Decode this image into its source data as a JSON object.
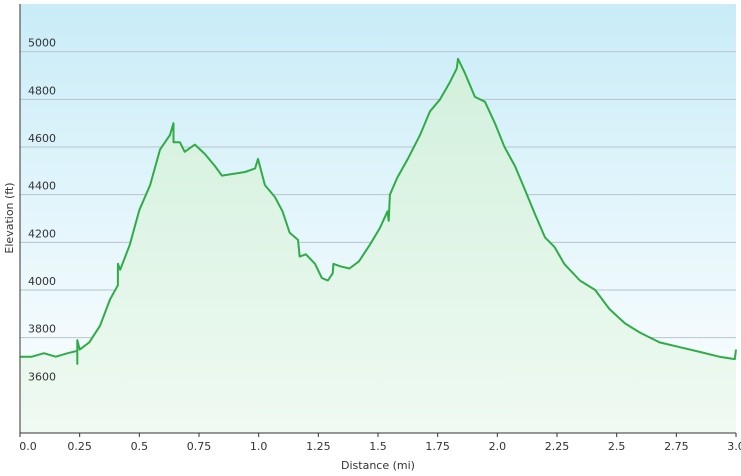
{
  "chart_data": {
    "type": "area",
    "xlabel": "Distance  (mi)",
    "ylabel": "Elevation (ft)",
    "x": [
      0,
      0.05,
      0.1,
      0.15,
      0.2,
      0.24,
      0.24,
      0.24,
      0.25,
      0.29,
      0.335,
      0.377,
      0.41,
      0.41,
      0.42,
      0.46,
      0.5,
      0.545,
      0.587,
      0.628,
      0.643,
      0.643,
      0.67,
      0.69,
      0.733,
      0.775,
      0.817,
      0.846,
      0.88,
      0.943,
      0.985,
      0.997,
      1.026,
      1.068,
      1.1,
      1.13,
      1.165,
      1.172,
      1.198,
      1.236,
      1.265,
      1.29,
      1.31,
      1.313,
      1.34,
      1.38,
      1.42,
      1.466,
      1.508,
      1.54,
      1.545,
      1.55,
      1.58,
      1.625,
      1.676,
      1.718,
      1.76,
      1.8,
      1.83,
      1.835,
      1.864,
      1.906,
      1.948,
      1.99,
      2.03,
      2.074,
      2.116,
      2.157,
      2.2,
      2.24,
      2.28,
      2.346,
      2.41,
      2.47,
      2.535,
      2.6,
      2.68,
      2.765,
      2.85,
      2.93,
      2.995,
      3.0
    ],
    "values": [
      3720,
      3720,
      3735,
      3720,
      3735,
      3745,
      3690,
      3790,
      3750,
      3780,
      3850,
      3960,
      4020,
      4110,
      4085,
      4190,
      4335,
      4440,
      4590,
      4650,
      4700,
      4620,
      4620,
      4580,
      4610,
      4570,
      4520,
      4480,
      4485,
      4495,
      4510,
      4550,
      4440,
      4390,
      4330,
      4240,
      4210,
      4140,
      4150,
      4110,
      4050,
      4040,
      4070,
      4110,
      4100,
      4090,
      4120,
      4190,
      4260,
      4330,
      4290,
      4400,
      4470,
      4550,
      4650,
      4750,
      4800,
      4870,
      4930,
      4970,
      4910,
      4810,
      4790,
      4700,
      4600,
      4520,
      4420,
      4320,
      4220,
      4180,
      4110,
      4040,
      4000,
      3920,
      3860,
      3820,
      3780,
      3760,
      3740,
      3720,
      3710,
      3750
    ],
    "color": "#2fac48",
    "xlim": [
      0,
      3.0
    ],
    "xticks": [
      {
        "value": 0,
        "label": "0.0"
      },
      0.25,
      {
        "value": 0.5,
        "label": "0.5"
      },
      0.75,
      {
        "value": 1,
        "label": "1.0"
      },
      1.25,
      {
        "value": 1.5,
        "label": "1.5"
      },
      1.75,
      {
        "value": 2,
        "label": "2.0"
      },
      2.25,
      {
        "value": 2.5,
        "label": "2.5"
      },
      2.75,
      {
        "value": 3,
        "label": "3.0"
      }
    ],
    "ylim": [
      3400,
      5200
    ],
    "yticks": [
      3600,
      3800,
      4000,
      4200,
      4400,
      4600,
      4800,
      5000
    ],
    "grid": true
  }
}
